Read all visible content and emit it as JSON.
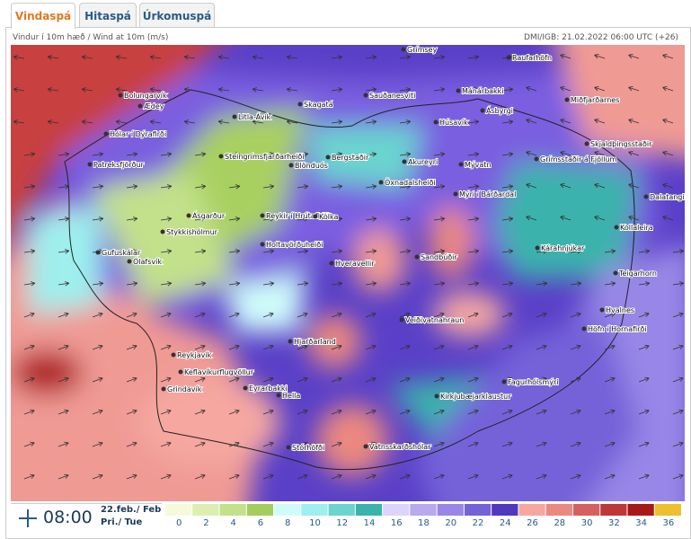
{
  "tabs": [
    "Vindaspá",
    "Hitaspá",
    "Úrkomuspá"
  ],
  "header": {
    "left": "Vindur í 10m hæð / Wind at 10m (m/s)",
    "right": "DMI/IGB: 21.02.2022 06:00 UTC (+26)"
  },
  "places": [
    "Grímsey",
    "Raufarhöfn",
    "Bolungarvík",
    "Ædey",
    "Sauðanesviti",
    "Skagatá",
    "Mánárbakki",
    "Miðfjarðarnes",
    "Litla-Ávík",
    "Ásbyrgi",
    "Húsavík",
    "Hólar í Dýrafirði",
    "Skjaldþingsstaðir",
    "Steingrímsfjarðarheiði",
    "Blönduós",
    "Bergstaðir",
    "Akureyri",
    "Mývatn",
    "Grímsstaðir á Fjöllum",
    "Patreksfjörður",
    "Öxnadalsheiði",
    "Mýri í Bárðardal",
    "Dalatangi",
    "Ásgarður",
    "Reykir í Hrútafirði",
    "Kolka",
    "Stykkishólmur",
    "Kollaleira",
    "Holtavörðuheiði",
    "Kárahnjúkar",
    "Gufuskálar",
    "Ólafsvík",
    "Hveravellir",
    "Sandbúðir",
    "Teigarhorn",
    "Hvalnes",
    "Veiðivatnahraun",
    "Höfn í Hornafirði",
    "Hjarðarland",
    "Reykjavík",
    "Keflavíkurflugvöllur",
    "Grindavík",
    "Eyrarbakki",
    "Hella",
    "Kirkjubæjarklaustur",
    "Fagurhólsmýri",
    "Stórhöfði",
    "Vatnsskarðshólar"
  ],
  "footer": {
    "time": "08:00",
    "date": "22.feb./ Feb",
    "day": "Pri./ Tue"
  },
  "legend": {
    "values": [
      0,
      2,
      4,
      6,
      8,
      10,
      12,
      14,
      16,
      18,
      20,
      22,
      24,
      26,
      28,
      30,
      32,
      34,
      36
    ],
    "colors": [
      "#f4fbdc",
      "#dcefb0",
      "#c3e18a",
      "#a5cd5e",
      "#cffcfb",
      "#9eefee",
      "#6bd4cf",
      "#3bb3ac",
      "#dcd4fa",
      "#b9a9f1",
      "#9887e7",
      "#7462d9",
      "#5138be",
      "#f5a7a0",
      "#eb8880",
      "#d65f5f",
      "#bf3838",
      "#a81818",
      "#eec030",
      "#d09c1c",
      "#9c7216"
    ]
  }
}
